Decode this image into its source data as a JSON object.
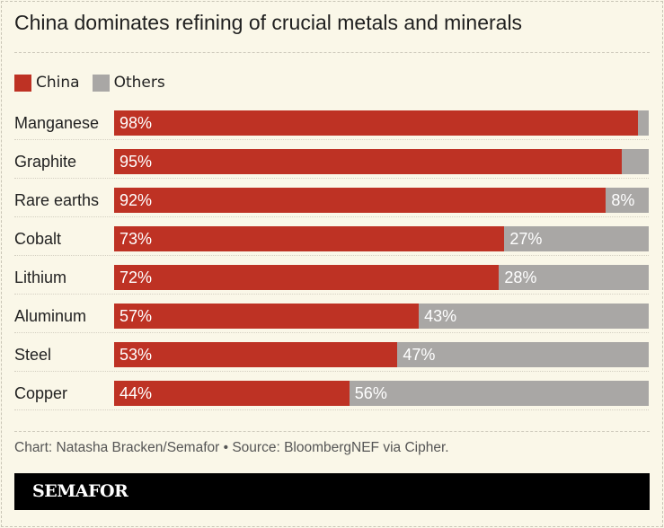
{
  "title": "China dominates refining of crucial metals and minerals",
  "chart_data": {
    "type": "bar",
    "orientation": "horizontal",
    "stacked": true,
    "title": "China dominates refining of crucial metals and minerals",
    "categories": [
      "Manganese",
      "Graphite",
      "Rare earths",
      "Cobalt",
      "Lithium",
      "Aluminum",
      "Steel",
      "Copper"
    ],
    "series": [
      {
        "name": "China",
        "color": "#be3224",
        "values": [
          98,
          95,
          92,
          73,
          72,
          57,
          53,
          44
        ]
      },
      {
        "name": "Others",
        "color": "#a9a7a5",
        "values": [
          2,
          5,
          8,
          27,
          28,
          43,
          47,
          56
        ]
      }
    ],
    "labels": {
      "China": [
        "98%",
        "95%",
        "92%",
        "73%",
        "72%",
        "57%",
        "53%",
        "44%"
      ],
      "Others": [
        "",
        "",
        "8%",
        "27%",
        "28%",
        "43%",
        "47%",
        "56%"
      ]
    },
    "xlim": [
      0,
      100
    ],
    "legend": "top-left",
    "grid": false
  },
  "footer": "Chart: Natasha Bracken/Semafor • Source: BloombergNEF via Cipher.",
  "brand": "SEMAFOR"
}
